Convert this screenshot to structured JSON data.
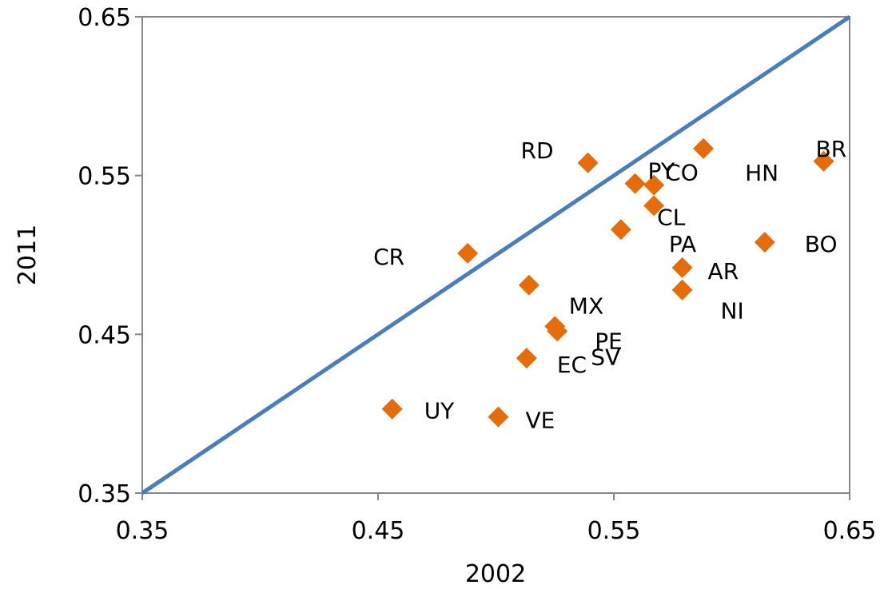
{
  "chart_data": {
    "type": "scatter",
    "title": "",
    "xlabel": "2002",
    "ylabel": "2011",
    "xlim": [
      0.35,
      0.65
    ],
    "ylim": [
      0.35,
      0.65
    ],
    "xticks": [
      "0.35",
      "0.45",
      "0.55",
      "0.65"
    ],
    "yticks": [
      "0.35",
      "0.45",
      "0.55",
      "0.65"
    ],
    "grid": false,
    "legend": "none",
    "marker_color": "#E46C0A",
    "reference_line": {
      "from": [
        0.35,
        0.35
      ],
      "to": [
        0.65,
        0.65
      ],
      "color": "#4A7EBB"
    },
    "points": [
      {
        "label": "RD",
        "x": 0.539,
        "y": 0.558
      },
      {
        "label": "PY",
        "x": 0.559,
        "y": 0.545
      },
      {
        "label": "CO",
        "x": 0.567,
        "y": 0.544
      },
      {
        "label": "CL",
        "x": 0.567,
        "y": 0.531
      },
      {
        "label": "PA",
        "x": 0.553,
        "y": 0.516
      },
      {
        "label": "HN",
        "x": 0.588,
        "y": 0.567
      },
      {
        "label": "BR",
        "x": 0.639,
        "y": 0.559
      },
      {
        "label": "BO",
        "x": 0.614,
        "y": 0.508
      },
      {
        "label": "AR",
        "x": 0.579,
        "y": 0.492
      },
      {
        "label": "NI",
        "x": 0.579,
        "y": 0.478
      },
      {
        "label": "CR",
        "x": 0.488,
        "y": 0.501
      },
      {
        "label": "MX",
        "x": 0.514,
        "y": 0.481
      },
      {
        "label": "PE",
        "x": 0.525,
        "y": 0.455
      },
      {
        "label": "SV",
        "x": 0.526,
        "y": 0.452
      },
      {
        "label": "EC",
        "x": 0.513,
        "y": 0.435
      },
      {
        "label": "UY",
        "x": 0.456,
        "y": 0.403
      },
      {
        "label": "VE",
        "x": 0.501,
        "y": 0.398
      }
    ]
  }
}
